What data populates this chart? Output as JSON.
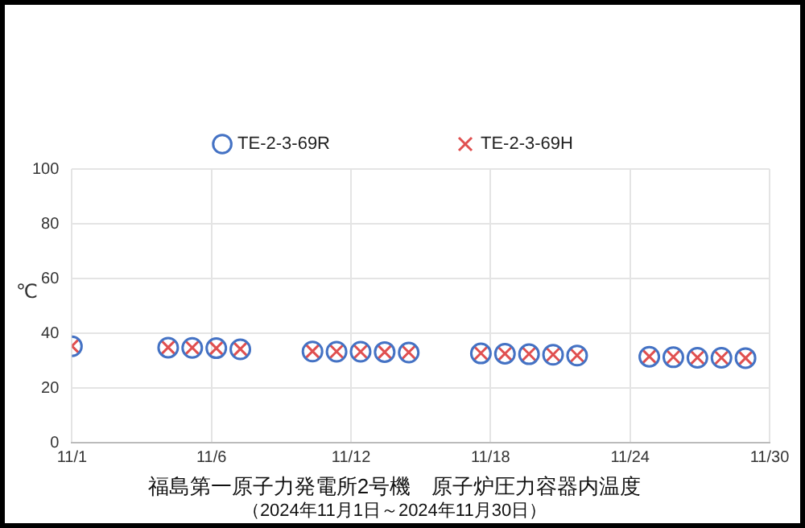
{
  "chart_data": {
    "type": "scatter",
    "title": "福島第一原子力発電所2号機　原子炉圧力容器内温度",
    "subtitle": "（2024年11月1日～2024年11月30日）",
    "ylabel": "℃",
    "x": [
      "2024-11-01",
      "2024-11-05",
      "2024-11-06",
      "2024-11-07",
      "2024-11-08",
      "2024-11-11",
      "2024-11-12",
      "2024-11-13",
      "2024-11-14",
      "2024-11-15",
      "2024-11-18",
      "2024-11-19",
      "2024-11-20",
      "2024-11-21",
      "2024-11-22",
      "2024-11-25",
      "2024-11-26",
      "2024-11-27",
      "2024-11-28",
      "2024-11-29"
    ],
    "series": [
      {
        "name": "TE-2-3-69R",
        "color": "#4472c4",
        "marker": "circle",
        "values": [
          35.3,
          34.8,
          34.7,
          34.6,
          34.2,
          33.4,
          33.3,
          33.3,
          33.2,
          33.0,
          32.7,
          32.6,
          32.4,
          32.2,
          31.9,
          31.5,
          31.3,
          31.1,
          31.1,
          31.0
        ]
      },
      {
        "name": "TE-2-3-69H",
        "color": "#e05050",
        "marker": "cross",
        "values": [
          35.4,
          34.9,
          34.8,
          34.6,
          34.3,
          33.5,
          33.4,
          33.3,
          33.2,
          33.1,
          32.8,
          32.6,
          32.5,
          32.3,
          32.0,
          31.6,
          31.4,
          31.2,
          31.1,
          31.0
        ]
      }
    ],
    "xlim": [
      "2024-11-01",
      "2024-11-30"
    ],
    "xticks": [
      {
        "value": "2024-11-01",
        "label": "11/1"
      },
      {
        "value": "2024-11-06T19:12",
        "label": "11/6"
      },
      {
        "value": "2024-11-12T14:24",
        "label": "11/12"
      },
      {
        "value": "2024-11-18T09:36",
        "label": "11/18"
      },
      {
        "value": "2024-11-24T04:48",
        "label": "11/24"
      },
      {
        "value": "2024-11-30",
        "label": "11/30"
      }
    ],
    "ylim": [
      0,
      100
    ],
    "yticks": [
      0,
      20,
      40,
      60,
      80,
      100
    ],
    "grid": true,
    "legend": "top"
  }
}
